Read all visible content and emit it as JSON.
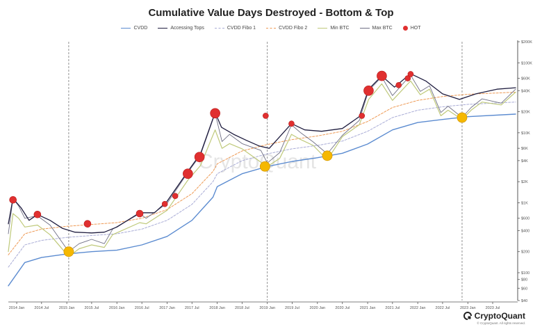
{
  "chart_data": {
    "type": "line",
    "title": "Cumulative Value Days Destroyed - Bottom & Top",
    "legend": [
      {
        "name": "CVDD",
        "color": "#5b8bd0",
        "style": "line"
      },
      {
        "name": "Accessing Tops",
        "color": "#1f1d3f",
        "style": "line"
      },
      {
        "name": "CVDD Fibo 1",
        "color": "#a9acd6",
        "style": "dashed"
      },
      {
        "name": "CVDD Fibo 2",
        "color": "#ee9a55",
        "style": "dashed"
      },
      {
        "name": "Min BTC",
        "color": "#bfc97a",
        "style": "line"
      },
      {
        "name": "Max BTC",
        "color": "#6f6f84",
        "style": "line"
      },
      {
        "name": "HOT",
        "color": "#e03030",
        "style": "dot"
      }
    ],
    "x_ticks": [
      "2014 Jan",
      "2014 Jul",
      "2015 Jan",
      "2015 Jul",
      "2016 Jan",
      "2016 Jul",
      "2017 Jan",
      "2017 Jul",
      "2018 Jan",
      "2018 Jul",
      "2019 Jan",
      "2019 Jul",
      "2020 Jan",
      "2020 Jul",
      "2021 Jan",
      "2021 Jul",
      "2022 Jan",
      "2022 Jul",
      "2023 Jan",
      "2023 Jul"
    ],
    "x_start": "2013-11-01",
    "x_end": "2023-12-15",
    "y_scale": "log",
    "y_range": [
      40,
      200000
    ],
    "y_ticks": [
      {
        "label": "$200K",
        "value": 200000
      },
      {
        "label": "$100K",
        "value": 100000
      },
      {
        "label": "$60K",
        "value": 60000
      },
      {
        "label": "$40K",
        "value": 40000
      },
      {
        "label": "$20K",
        "value": 20000
      },
      {
        "label": "$10K",
        "value": 10000
      },
      {
        "label": "$6K",
        "value": 6000
      },
      {
        "label": "$4K",
        "value": 4000
      },
      {
        "label": "$2K",
        "value": 2000
      },
      {
        "label": "$1K",
        "value": 1000
      },
      {
        "label": "$600",
        "value": 600
      },
      {
        "label": "$400",
        "value": 400
      },
      {
        "label": "$200",
        "value": 200
      },
      {
        "label": "$100",
        "value": 100
      },
      {
        "label": "$80",
        "value": 80
      },
      {
        "label": "$60",
        "value": 60
      },
      {
        "label": "$40",
        "value": 40
      }
    ],
    "vertical_markers": [
      "2015-01-15",
      "2019-01-01",
      "2022-11-20"
    ],
    "watermark": "CryptoQuant",
    "series": [
      {
        "name": "CVDD",
        "color": "#5b8bd0",
        "points": [
          [
            "2013-11-01",
            65
          ],
          [
            "2014-03-01",
            140
          ],
          [
            "2014-07-01",
            165
          ],
          [
            "2015-01-01",
            185
          ],
          [
            "2015-07-01",
            200
          ],
          [
            "2016-01-01",
            210
          ],
          [
            "2016-07-01",
            250
          ],
          [
            "2017-01-01",
            330
          ],
          [
            "2017-07-01",
            560
          ],
          [
            "2017-12-01",
            1200
          ],
          [
            "2018-01-01",
            1700
          ],
          [
            "2018-07-01",
            2600
          ],
          [
            "2019-01-01",
            3300
          ],
          [
            "2019-07-01",
            3900
          ],
          [
            "2020-01-01",
            4400
          ],
          [
            "2020-07-01",
            5100
          ],
          [
            "2021-01-01",
            6900
          ],
          [
            "2021-07-01",
            11000
          ],
          [
            "2022-01-01",
            14000
          ],
          [
            "2022-07-01",
            15500
          ],
          [
            "2023-01-01",
            17000
          ],
          [
            "2023-12-15",
            18500
          ]
        ]
      },
      {
        "name": "CVDD Fibo 1",
        "color": "#a9acd6",
        "dashed": true,
        "points": [
          [
            "2013-11-01",
            120
          ],
          [
            "2014-03-01",
            250
          ],
          [
            "2014-07-01",
            290
          ],
          [
            "2015-01-01",
            320
          ],
          [
            "2015-07-01",
            340
          ],
          [
            "2016-01-01",
            360
          ],
          [
            "2016-07-01",
            420
          ],
          [
            "2017-01-01",
            560
          ],
          [
            "2017-07-01",
            950
          ],
          [
            "2017-12-01",
            2000
          ],
          [
            "2018-01-01",
            2600
          ],
          [
            "2018-07-01",
            4000
          ],
          [
            "2019-01-01",
            5000
          ],
          [
            "2019-07-01",
            5900
          ],
          [
            "2020-01-01",
            6600
          ],
          [
            "2020-07-01",
            7600
          ],
          [
            "2021-01-01",
            10500
          ],
          [
            "2021-07-01",
            16500
          ],
          [
            "2022-01-01",
            21000
          ],
          [
            "2022-07-01",
            23500
          ],
          [
            "2023-01-01",
            25500
          ],
          [
            "2023-12-15",
            27500
          ]
        ]
      },
      {
        "name": "CVDD Fibo 2",
        "color": "#ee9a55",
        "dashed": true,
        "points": [
          [
            "2013-11-01",
            180
          ],
          [
            "2014-03-01",
            360
          ],
          [
            "2014-07-01",
            420
          ],
          [
            "2015-01-01",
            460
          ],
          [
            "2015-07-01",
            490
          ],
          [
            "2016-01-01",
            520
          ],
          [
            "2016-07-01",
            600
          ],
          [
            "2017-01-01",
            800
          ],
          [
            "2017-07-01",
            1350
          ],
          [
            "2017-12-01",
            2800
          ],
          [
            "2018-01-01",
            3600
          ],
          [
            "2018-07-01",
            5500
          ],
          [
            "2019-01-01",
            6800
          ],
          [
            "2019-07-01",
            8000
          ],
          [
            "2020-01-01",
            9000
          ],
          [
            "2020-07-01",
            10500
          ],
          [
            "2021-01-01",
            14500
          ],
          [
            "2021-07-01",
            23000
          ],
          [
            "2022-01-01",
            29000
          ],
          [
            "2022-07-01",
            33000
          ],
          [
            "2023-01-01",
            35500
          ],
          [
            "2023-12-15",
            38000
          ]
        ]
      },
      {
        "name": "Accessing Tops",
        "color": "#1f1d3f",
        "points": [
          [
            "2013-11-01",
            500
          ],
          [
            "2013-12-05",
            1150
          ],
          [
            "2014-02-01",
            850
          ],
          [
            "2014-04-01",
            560
          ],
          [
            "2014-06-01",
            680
          ],
          [
            "2014-09-01",
            560
          ],
          [
            "2014-12-01",
            430
          ],
          [
            "2015-03-01",
            380
          ],
          [
            "2015-07-01",
            370
          ],
          [
            "2015-10-01",
            380
          ],
          [
            "2016-01-01",
            450
          ],
          [
            "2016-06-15",
            720
          ],
          [
            "2016-10-01",
            720
          ],
          [
            "2017-01-01",
            1050
          ],
          [
            "2017-06-01",
            2800
          ],
          [
            "2017-09-01",
            5000
          ],
          [
            "2017-12-17",
            19500
          ],
          [
            "2018-02-01",
            12000
          ],
          [
            "2018-05-01",
            9500
          ],
          [
            "2018-08-01",
            7800
          ],
          [
            "2018-11-01",
            6500
          ],
          [
            "2019-01-15",
            6000
          ],
          [
            "2019-06-26",
            13500
          ],
          [
            "2019-10-01",
            11000
          ],
          [
            "2020-02-01",
            10500
          ],
          [
            "2020-07-01",
            11500
          ],
          [
            "2020-11-01",
            17000
          ],
          [
            "2021-01-08",
            42000
          ],
          [
            "2021-04-14",
            65000
          ],
          [
            "2021-07-15",
            45000
          ],
          [
            "2021-11-10",
            70000
          ],
          [
            "2022-03-01",
            55000
          ],
          [
            "2022-07-01",
            36000
          ],
          [
            "2022-11-01",
            30000
          ],
          [
            "2023-03-01",
            36000
          ],
          [
            "2023-08-01",
            42000
          ],
          [
            "2023-12-15",
            44000
          ]
        ]
      },
      {
        "name": "Max BTC",
        "color": "#6f6f84",
        "points": [
          [
            "2013-11-01",
            360
          ],
          [
            "2013-12-05",
            1150
          ],
          [
            "2014-01-15",
            900
          ],
          [
            "2014-03-01",
            600
          ],
          [
            "2014-06-01",
            650
          ],
          [
            "2014-09-01",
            480
          ],
          [
            "2015-01-15",
            200
          ],
          [
            "2015-04-01",
            260
          ],
          [
            "2015-07-01",
            300
          ],
          [
            "2015-10-01",
            260
          ],
          [
            "2015-12-01",
            420
          ],
          [
            "2016-06-15",
            700
          ],
          [
            "2016-08-01",
            600
          ],
          [
            "2017-01-01",
            980
          ],
          [
            "2017-06-01",
            2700
          ],
          [
            "2017-09-01",
            4800
          ],
          [
            "2017-12-17",
            19000
          ],
          [
            "2018-02-05",
            7500
          ],
          [
            "2018-04-01",
            9500
          ],
          [
            "2018-07-01",
            7000
          ],
          [
            "2018-11-15",
            5600
          ],
          [
            "2019-01-01",
            3700
          ],
          [
            "2019-04-01",
            5200
          ],
          [
            "2019-06-26",
            13000
          ],
          [
            "2019-09-01",
            10000
          ],
          [
            "2019-12-01",
            7400
          ],
          [
            "2020-03-13",
            5000
          ],
          [
            "2020-07-01",
            9200
          ],
          [
            "2020-11-01",
            15000
          ],
          [
            "2021-01-08",
            40000
          ],
          [
            "2021-04-14",
            63000
          ],
          [
            "2021-07-01",
            34000
          ],
          [
            "2021-11-10",
            67000
          ],
          [
            "2022-01-20",
            39000
          ],
          [
            "2022-03-28",
            47000
          ],
          [
            "2022-06-18",
            19500
          ],
          [
            "2022-08-10",
            24000
          ],
          [
            "2022-11-20",
            16500
          ],
          [
            "2023-01-25",
            23000
          ],
          [
            "2023-04-14",
            30500
          ],
          [
            "2023-09-01",
            26500
          ],
          [
            "2023-12-15",
            42000
          ]
        ]
      },
      {
        "name": "Min BTC",
        "color": "#bfc97a",
        "points": [
          [
            "2013-11-01",
            200
          ],
          [
            "2013-12-05",
            700
          ],
          [
            "2014-01-15",
            600
          ],
          [
            "2014-03-01",
            450
          ],
          [
            "2014-06-01",
            480
          ],
          [
            "2014-09-01",
            350
          ],
          [
            "2015-01-15",
            170
          ],
          [
            "2015-04-01",
            220
          ],
          [
            "2015-07-01",
            250
          ],
          [
            "2015-10-01",
            230
          ],
          [
            "2015-12-01",
            350
          ],
          [
            "2016-06-15",
            520
          ],
          [
            "2016-08-01",
            500
          ],
          [
            "2017-01-01",
            780
          ],
          [
            "2017-06-01",
            2100
          ],
          [
            "2017-09-01",
            3400
          ],
          [
            "2017-12-17",
            11000
          ],
          [
            "2018-02-05",
            6000
          ],
          [
            "2018-04-01",
            7000
          ],
          [
            "2018-07-01",
            5900
          ],
          [
            "2018-11-15",
            3800
          ],
          [
            "2019-01-01",
            3300
          ],
          [
            "2019-04-01",
            4300
          ],
          [
            "2019-06-26",
            9500
          ],
          [
            "2019-09-01",
            8000
          ],
          [
            "2019-12-01",
            6600
          ],
          [
            "2020-03-13",
            4100
          ],
          [
            "2020-07-01",
            8800
          ],
          [
            "2020-11-01",
            13000
          ],
          [
            "2021-01-08",
            30000
          ],
          [
            "2021-04-14",
            50000
          ],
          [
            "2021-07-01",
            29000
          ],
          [
            "2021-11-10",
            55000
          ],
          [
            "2022-01-20",
            35000
          ],
          [
            "2022-03-28",
            42000
          ],
          [
            "2022-06-18",
            17500
          ],
          [
            "2022-08-10",
            21000
          ],
          [
            "2022-11-20",
            15500
          ],
          [
            "2023-01-25",
            21000
          ],
          [
            "2023-04-14",
            27500
          ],
          [
            "2023-09-01",
            25000
          ],
          [
            "2023-12-15",
            38000
          ]
        ]
      }
    ],
    "hot_points": [
      [
        "2013-12-05",
        1100,
        5
      ],
      [
        "2014-06-01",
        680,
        5
      ],
      [
        "2015-06-01",
        500,
        5
      ],
      [
        "2016-06-15",
        700,
        5
      ],
      [
        "2016-12-15",
        960,
        4
      ],
      [
        "2017-03-01",
        1250,
        4
      ],
      [
        "2017-06-01",
        2600,
        7
      ],
      [
        "2017-08-25",
        4500,
        7
      ],
      [
        "2017-12-17",
        19000,
        7
      ],
      [
        "2018-12-20",
        17500,
        4
      ],
      [
        "2019-06-26",
        13500,
        4
      ],
      [
        "2020-11-20",
        17500,
        4
      ],
      [
        "2021-01-08",
        40000,
        7
      ],
      [
        "2021-04-14",
        65000,
        7
      ],
      [
        "2021-08-15",
        48000,
        4
      ],
      [
        "2021-10-20",
        60000,
        4
      ],
      [
        "2021-11-10",
        69000,
        4
      ]
    ],
    "bottom_points": [
      [
        "2015-01-15",
        200
      ],
      [
        "2018-12-15",
        3300
      ],
      [
        "2020-03-13",
        4700
      ],
      [
        "2022-11-20",
        16500
      ]
    ],
    "hot_color": "#e03030",
    "bottom_color": "#f5b800"
  },
  "brand": {
    "name": "CryptoQuant",
    "copyright": "© CryptoQuant. All rights reserved."
  }
}
